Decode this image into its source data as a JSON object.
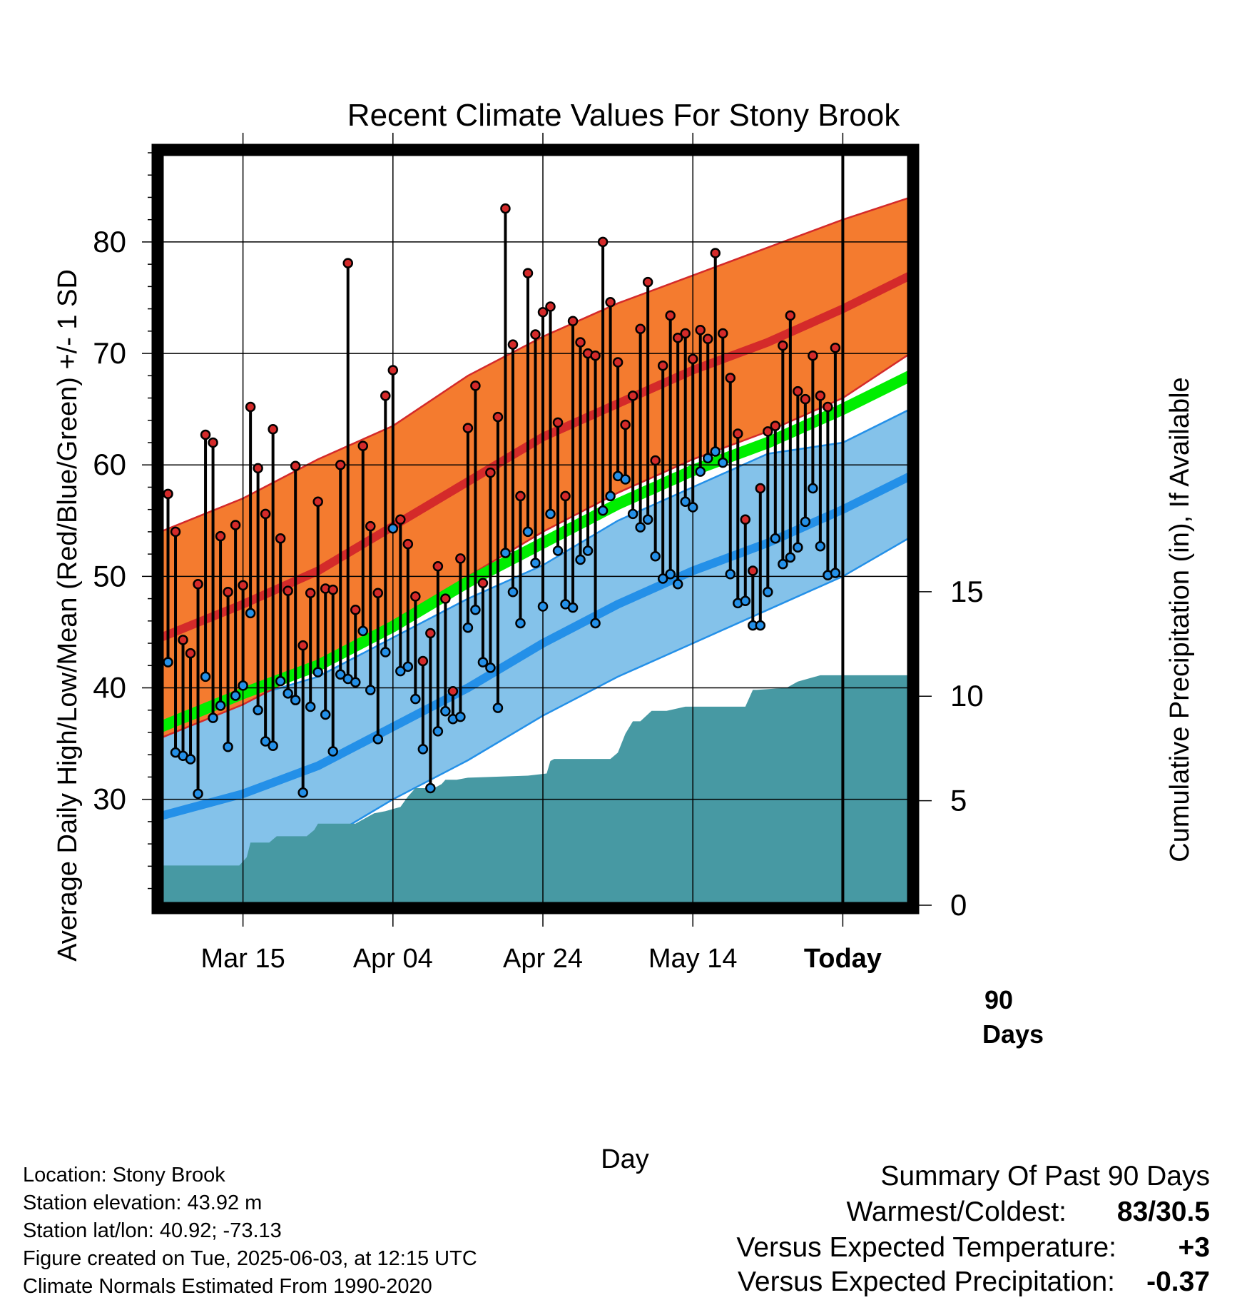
{
  "chart_data": {
    "type": "line",
    "title": "Recent Climate Values For Stony Brook",
    "xlabel": "Day",
    "ylabel": "Average Daily High/Low/Mean (Red/Blue/Green) +/- 1 SD",
    "ylabel_right": "Cumulative Precipitation (in), If Available",
    "x_tick_labels": [
      "Mar 15",
      "Apr 04",
      "Apr 24",
      "May 14",
      "Today"
    ],
    "x_tick_days": [
      10,
      30,
      50,
      70,
      90
    ],
    "xlim": [
      -1,
      99
    ],
    "ylim": [
      20.5,
      88
    ],
    "y_ticks": [
      30,
      40,
      50,
      60,
      70,
      80
    ],
    "y2lim": [
      0,
      36
    ],
    "y2_ticks": [
      0,
      5,
      10,
      15
    ],
    "grid": true,
    "today_marker": {
      "day": 90,
      "label_line1": "90",
      "label_line2": "Days"
    },
    "colors": {
      "high_band": "#f47b2f",
      "high_line": "#d42a2a",
      "high_edge": "#d42a2a",
      "low_band": "#84c2ea",
      "low_line": "#2490e8",
      "low_edge": "#2490e8",
      "mean_line": "#00ee00",
      "precip": "#4799a3",
      "high_dot": "#d42a2a",
      "low_dot": "#2490e8"
    },
    "normal_high": {
      "x": [
        -1,
        10,
        20,
        30,
        40,
        50,
        60,
        70,
        80,
        90,
        99
      ],
      "y": [
        44.5,
        47.5,
        50.5,
        54.5,
        58.5,
        62.5,
        65.5,
        68.5,
        71,
        74,
        77
      ]
    },
    "normal_high_sd": {
      "x": [
        -1,
        10,
        20,
        30,
        40,
        50,
        60,
        70,
        80,
        90,
        99
      ],
      "lower": [
        35.5,
        38.5,
        42,
        46,
        50,
        54,
        57.5,
        60.5,
        63,
        66,
        70
      ],
      "upper": [
        54,
        57,
        60.5,
        63.5,
        68,
        71.5,
        74.5,
        77,
        79.5,
        82,
        84
      ]
    },
    "normal_mean": {
      "x": [
        -1,
        10,
        20,
        30,
        40,
        50,
        60,
        70,
        80,
        90,
        99
      ],
      "y": [
        36.5,
        39.5,
        42,
        45.5,
        49.5,
        53,
        56.5,
        59.5,
        62,
        65,
        68
      ]
    },
    "normal_low": {
      "x": [
        -1,
        10,
        20,
        30,
        40,
        50,
        60,
        70,
        80,
        90,
        99
      ],
      "y": [
        28.5,
        30.5,
        33,
        36.5,
        40,
        44,
        47.5,
        50.5,
        53,
        56,
        59
      ]
    },
    "normal_low_sd": {
      "x": [
        -1,
        10,
        20,
        30,
        40,
        50,
        60,
        70,
        80,
        90,
        99
      ],
      "lower": [
        19.5,
        22,
        26,
        30,
        33.5,
        37.5,
        41,
        44,
        47,
        50,
        53.5
      ],
      "upper": [
        37,
        39,
        41,
        44.5,
        48,
        51,
        55,
        58,
        61,
        62,
        65
      ]
    },
    "daily_high": [
      57.4,
      54,
      44.3,
      43.1,
      49.3,
      62.7,
      62,
      53.6,
      48.6,
      54.6,
      49.2,
      65.2,
      59.7,
      55.6,
      63.2,
      53.4,
      48.7,
      59.9,
      43.8,
      48.5,
      56.7,
      48.9,
      48.8,
      60,
      78.1,
      47,
      61.7,
      54.5,
      48.5,
      66.2,
      68.5,
      55.1,
      52.9,
      48.2,
      42.4,
      44.9,
      50.9,
      48,
      39.7,
      51.6,
      63.3,
      67.1,
      49.4,
      59.3,
      64.3,
      83,
      70.8,
      57.2,
      77.2,
      71.7,
      73.7,
      74.2,
      63.8,
      57.2,
      72.9,
      71,
      70,
      69.8,
      80,
      74.6,
      69.2,
      63.6,
      66.2,
      72.2,
      76.4,
      60.4,
      68.9,
      73.4,
      71.4,
      71.8,
      69.5,
      72.1,
      71.3,
      79,
      71.8,
      67.8,
      62.8,
      55.1,
      50.5,
      57.9,
      63,
      63.5,
      70.7,
      73.4,
      66.6,
      65.9,
      69.8,
      66.2,
      65.2,
      70.5
    ],
    "daily_low": [
      42.3,
      34.2,
      33.9,
      33.6,
      30.5,
      41,
      37.3,
      38.4,
      34.7,
      39.3,
      40.2,
      46.7,
      38,
      35.2,
      34.8,
      40.6,
      39.5,
      38.9,
      30.6,
      38.3,
      41.4,
      37.6,
      34.3,
      41.2,
      40.8,
      40.5,
      45.1,
      39.8,
      35.4,
      43.2,
      54.3,
      41.5,
      41.9,
      39,
      34.5,
      31,
      36.1,
      37.9,
      37.2,
      37.4,
      45.4,
      47,
      42.3,
      41.8,
      38.2,
      52.1,
      48.6,
      45.8,
      54,
      51.2,
      47.3,
      55.6,
      52.3,
      47.5,
      47.2,
      51.5,
      52.3,
      45.8,
      55.9,
      57.2,
      59,
      58.7,
      55.6,
      54.4,
      55.1,
      51.8,
      49.8,
      50.2,
      49.3,
      56.7,
      56.2,
      59.4,
      60.6,
      61.2,
      60.2,
      50.2,
      47.6,
      47.8,
      45.6,
      45.6,
      48.6,
      53.4,
      51.1,
      51.7,
      52.6,
      54.9,
      57.9,
      52.7,
      50.1,
      50.3
    ],
    "precip_cumulative": {
      "x": [
        -1,
        9.5,
        10.5,
        11,
        12,
        13.5,
        14.5,
        18.5,
        19.5,
        20,
        22,
        24,
        25,
        26.5,
        27.5,
        29,
        30,
        31,
        32,
        33,
        35.5,
        36.5,
        37,
        38.5,
        40,
        48,
        50.5,
        51,
        51.5,
        59,
        60,
        61,
        62,
        63,
        64.5,
        65.5,
        66.5,
        69,
        70,
        71.5,
        77,
        78,
        78.5,
        82.5,
        84,
        85,
        87,
        87.5,
        99
      ],
      "y": [
        1.9,
        1.9,
        2.3,
        3,
        3,
        3,
        3.3,
        3.3,
        3.6,
        3.9,
        3.9,
        3.9,
        3.9,
        4.2,
        4.4,
        4.5,
        4.6,
        4.7,
        5.2,
        5.6,
        5.6,
        5.8,
        6,
        6,
        6.1,
        6.2,
        6.3,
        6.9,
        7,
        7,
        7.3,
        8.2,
        8.8,
        8.8,
        9.3,
        9.3,
        9.3,
        9.5,
        9.5,
        9.5,
        9.5,
        10.3,
        10.3,
        10.4,
        10.7,
        10.8,
        11,
        11,
        11
      ]
    },
    "summary": {
      "header": "Summary Of Past 90 Days",
      "warmest_coldest_label": "Warmest/Coldest:",
      "warmest_coldest_value": "83/30.5",
      "temp_label": "Versus Expected Temperature:",
      "temp_value": "+3",
      "temp_color": "#cc2222",
      "precip_label": "Versus Expected Precipitation:",
      "precip_value": "-0.37",
      "precip_color": "#a0522d"
    },
    "info_lines": [
      "Location: Stony Brook",
      "Station elevation: 43.92 m",
      "Station lat/lon: 40.92; -73.13",
      "Figure created on Tue, 2025-06-03, at 12:15 UTC",
      "Climate Normals Estimated From 1990-2020"
    ]
  }
}
